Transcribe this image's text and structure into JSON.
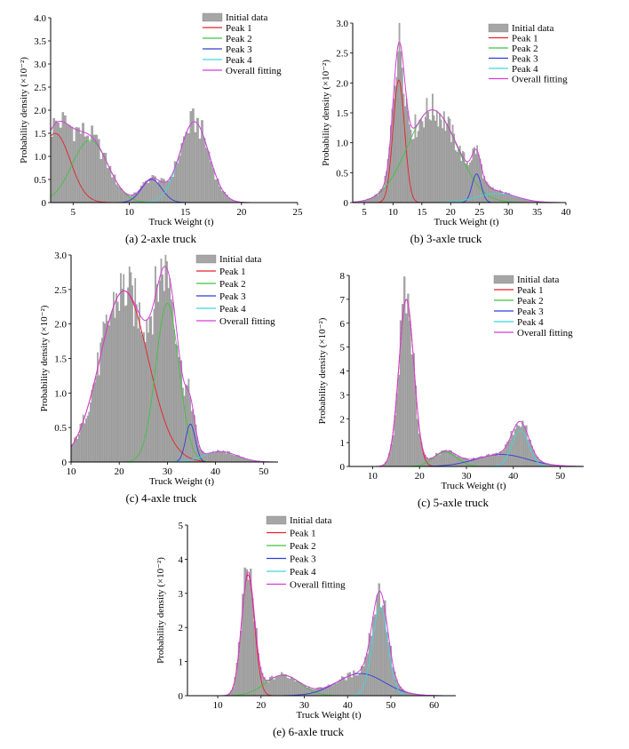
{
  "ylabel": "Probability density (×10⁻²)",
  "xlabel": "Truck Weight (t)",
  "legend": [
    "Initial data",
    "Peak 1",
    "Peak 2",
    "Peak 3",
    "Peak 4",
    "Overall fitting"
  ],
  "colors": {
    "hist": "#a6a6a6",
    "histEdge": "#7f7f7f",
    "peak1": "#e8202a",
    "peak2": "#3fc43f",
    "peak3": "#2c3fd8",
    "peak4": "#3dd8e0",
    "overall": "#d43fd8"
  },
  "chart_data": [
    {
      "type": "bar",
      "caption": "(a) 2-axle truck",
      "xlabel": "Truck Weight (t)",
      "ylabel": "Probability density (×10⁻²)",
      "xlim": [
        3,
        25
      ],
      "ylim": [
        0,
        4
      ],
      "xticks": [
        5,
        10,
        15,
        20,
        25
      ],
      "yticks": [
        0,
        0.5,
        1.0,
        1.5,
        2.0,
        2.5,
        3.0,
        3.5,
        4.0
      ],
      "ytickLabels": [
        "0",
        "0.5",
        "1.0",
        "1.5",
        "2.0",
        "2.5",
        "3.0",
        "3.5",
        "4.0"
      ],
      "legend_position": "top-right",
      "peaks": [
        {
          "name": "Peak 1",
          "weight": 1.5,
          "mu": 3.4,
          "sigma": 1.35
        },
        {
          "name": "Peak 2",
          "weight": 1.35,
          "mu": 6.5,
          "sigma": 1.6
        },
        {
          "name": "Peak 3",
          "weight": 0.5,
          "mu": 12.0,
          "sigma": 0.9
        },
        {
          "name": "Peak 4",
          "weight": 1.75,
          "mu": 15.8,
          "sigma": 1.3
        }
      ],
      "bins": {
        "start": 3.0,
        "width": 0.2
      }
    },
    {
      "type": "bar",
      "caption": "(b) 3-axle truck",
      "xlabel": "Truck Weight (t)",
      "ylabel": "Probability density (×10⁻²)",
      "xlim": [
        3,
        40
      ],
      "ylim": [
        0,
        3
      ],
      "xticks": [
        5,
        10,
        15,
        20,
        25,
        30,
        35,
        40
      ],
      "yticks": [
        0,
        0.5,
        1.0,
        1.5,
        2.0,
        2.5,
        3.0
      ],
      "ytickLabels": [
        "0",
        "0.5",
        "1.0",
        "1.5",
        "2.0",
        "2.5",
        "3.0"
      ],
      "legend_position": "top-right",
      "peaks": [
        {
          "name": "Peak 1",
          "weight": 2.05,
          "mu": 11.0,
          "sigma": 1.0
        },
        {
          "name": "Peak 2",
          "weight": 1.55,
          "mu": 16.8,
          "sigma": 4.3
        },
        {
          "name": "Peak 3",
          "weight": 0.48,
          "mu": 24.5,
          "sigma": 0.8
        },
        {
          "name": "Peak 4",
          "weight": 0.15,
          "mu": 28.0,
          "sigma": 3.5
        }
      ],
      "bins": {
        "start": 3.0,
        "width": 0.25
      }
    },
    {
      "type": "bar",
      "caption": "(c) 4-axle truck",
      "xlabel": "Truck Weight (t)",
      "ylabel": "Probability density (×10⁻²)",
      "xlim": [
        10,
        53
      ],
      "ylim": [
        0,
        3
      ],
      "xticks": [
        10,
        20,
        30,
        40,
        50
      ],
      "yticks": [
        0,
        0.5,
        1.0,
        1.5,
        2.0,
        2.5,
        3.0
      ],
      "ytickLabels": [
        "0",
        "0.5",
        "1.0",
        "1.5",
        "2.0",
        "2.5",
        "3.0"
      ],
      "legend_position": "top-right",
      "peaks": [
        {
          "name": "Peak 1",
          "weight": 2.48,
          "mu": 21.0,
          "sigma": 5.0
        },
        {
          "name": "Peak 2",
          "weight": 2.3,
          "mu": 30.0,
          "sigma": 2.4
        },
        {
          "name": "Peak 3",
          "weight": 0.55,
          "mu": 34.8,
          "sigma": 1.0
        },
        {
          "name": "Peak 4",
          "weight": 0.15,
          "mu": 41.0,
          "sigma": 3.5
        }
      ],
      "bins": {
        "start": 10.0,
        "width": 0.3
      }
    },
    {
      "type": "bar",
      "caption": "(c) 5-axle truck",
      "xlabel": "Truck Weight (t)",
      "ylabel": "Probability density (×10⁻²)",
      "xlim": [
        5,
        55
      ],
      "ylim": [
        0,
        8
      ],
      "xticks": [
        10,
        20,
        30,
        40,
        50
      ],
      "yticks": [
        0,
        1,
        2,
        3,
        4,
        5,
        6,
        7,
        8
      ],
      "ytickLabels": [
        "0",
        "1",
        "2",
        "3",
        "4",
        "5",
        "6",
        "7",
        "8"
      ],
      "legend_position": "top-right",
      "peaks": [
        {
          "name": "Peak 1",
          "weight": 7.0,
          "mu": 17.2,
          "sigma": 1.6
        },
        {
          "name": "Peak 2",
          "weight": 0.6,
          "mu": 25.5,
          "sigma": 2.5
        },
        {
          "name": "Peak 3",
          "weight": 0.5,
          "mu": 37.5,
          "sigma": 5.5
        },
        {
          "name": "Peak 4",
          "weight": 1.5,
          "mu": 41.5,
          "sigma": 1.8
        }
      ],
      "bins": {
        "start": 5.0,
        "width": 0.4
      }
    },
    {
      "type": "bar",
      "caption": "(e) 6-axle truck",
      "xlabel": "Truck Weight (t)",
      "ylabel": "Probability density (×10⁻²)",
      "xlim": [
        3,
        65
      ],
      "ylim": [
        0,
        5
      ],
      "xticks": [
        10,
        20,
        30,
        40,
        50,
        60
      ],
      "yticks": [
        0,
        1,
        2,
        3,
        4,
        5
      ],
      "ytickLabels": [
        "0",
        "1",
        "2",
        "3",
        "4",
        "5"
      ],
      "legend_position": "top-center",
      "peaks": [
        {
          "name": "Peak 1",
          "weight": 3.55,
          "mu": 17.0,
          "sigma": 1.5
        },
        {
          "name": "Peak 2",
          "weight": 0.6,
          "mu": 25.0,
          "sigma": 4.0
        },
        {
          "name": "Peak 3",
          "weight": 0.65,
          "mu": 43.0,
          "sigma": 5.5
        },
        {
          "name": "Peak 4",
          "weight": 2.6,
          "mu": 47.5,
          "sigma": 1.8
        }
      ],
      "bins": {
        "start": 3.0,
        "width": 0.45
      }
    }
  ]
}
